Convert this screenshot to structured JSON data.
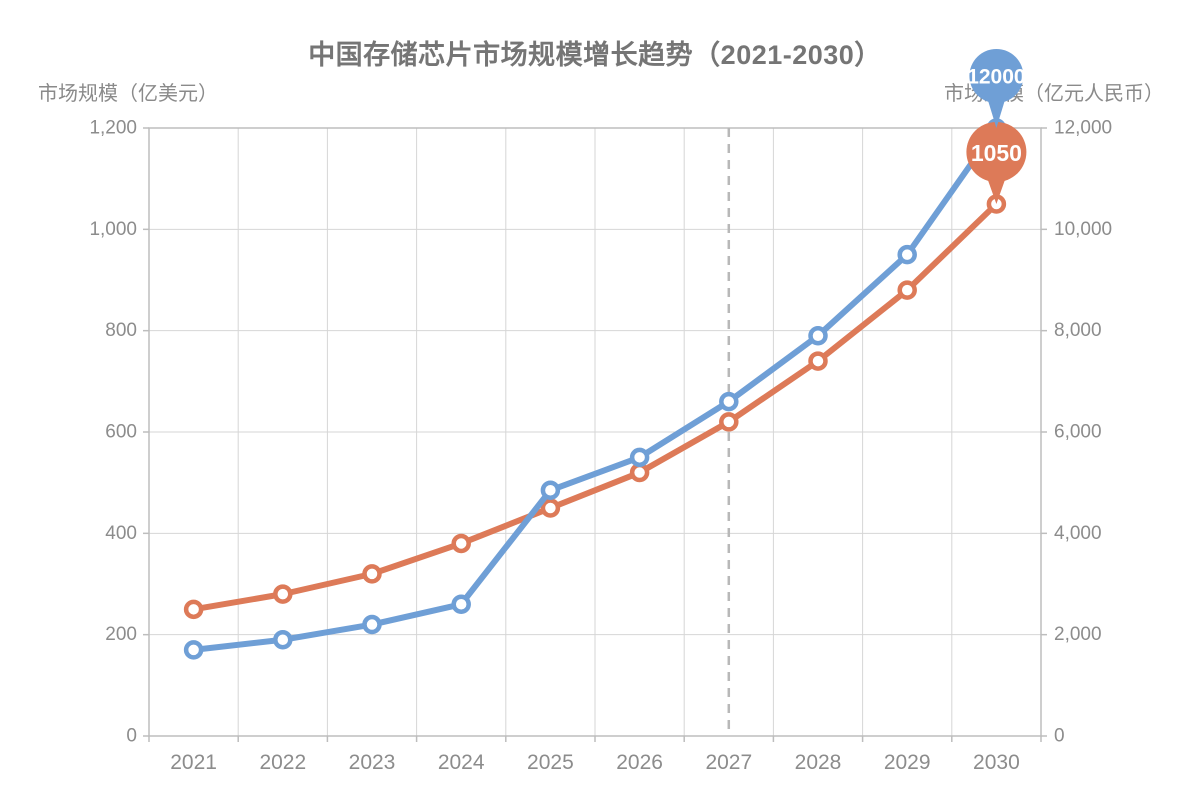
{
  "title": "中国存储芯片市场规模增长趋势（2021-2030）",
  "left_axis_name": "市场规模（亿美元）",
  "right_axis_name": "市场规模（亿元人民币）",
  "colors": {
    "usd_line": "#dd7a58",
    "rmb_line": "#6f9fd6",
    "grid": "#d6d6d6",
    "axis": "#bdbdbd",
    "dashed": "#b8b8b8",
    "text": "#8c8c8c",
    "title_text": "#757575",
    "pin_label": "#ffffff",
    "background": "#ffffff",
    "marker_fill": "#ffffff"
  },
  "chart_data": {
    "type": "line",
    "title": "中国存储芯片市场规模增长趋势（2021-2030）",
    "categories": [
      "2021",
      "2022",
      "2023",
      "2024",
      "2025",
      "2026",
      "2027",
      "2028",
      "2029",
      "2030"
    ],
    "series": [
      {
        "name": "市场规模（亿美元）",
        "axis": "left",
        "color": "#dd7a58",
        "values": [
          250,
          280,
          320,
          380,
          450,
          520,
          620,
          740,
          880,
          1050
        ],
        "max_point": {
          "category": "2030",
          "value": 1050,
          "label": "1050"
        }
      },
      {
        "name": "市场规模（亿元人民币）",
        "axis": "right",
        "color": "#6f9fd6",
        "values": [
          1700,
          1900,
          2200,
          2600,
          4850,
          5500,
          6600,
          7900,
          9500,
          12000
        ],
        "max_point": {
          "category": "2030",
          "value": 12000,
          "label": "12000"
        }
      }
    ],
    "left_axis": {
      "name": "市场规模（亿美元）",
      "min": 0,
      "max": 1200,
      "tick_labels": [
        "0",
        "200",
        "400",
        "600",
        "800",
        "1,000",
        "1,200"
      ]
    },
    "right_axis": {
      "name": "市场规模（亿元人民币）",
      "min": 0,
      "max": 12000,
      "tick_labels": [
        "0",
        "2,000",
        "4,000",
        "6,000",
        "8,000",
        "10,000",
        "12,000"
      ]
    },
    "x_axis": {
      "tick_labels": [
        "2021",
        "2022",
        "2023",
        "2024",
        "2025",
        "2026",
        "2027",
        "2028",
        "2029",
        "2030"
      ]
    },
    "annotations": {
      "forecast_divider_category": "2027"
    },
    "grid": true,
    "legend_position": "none"
  }
}
